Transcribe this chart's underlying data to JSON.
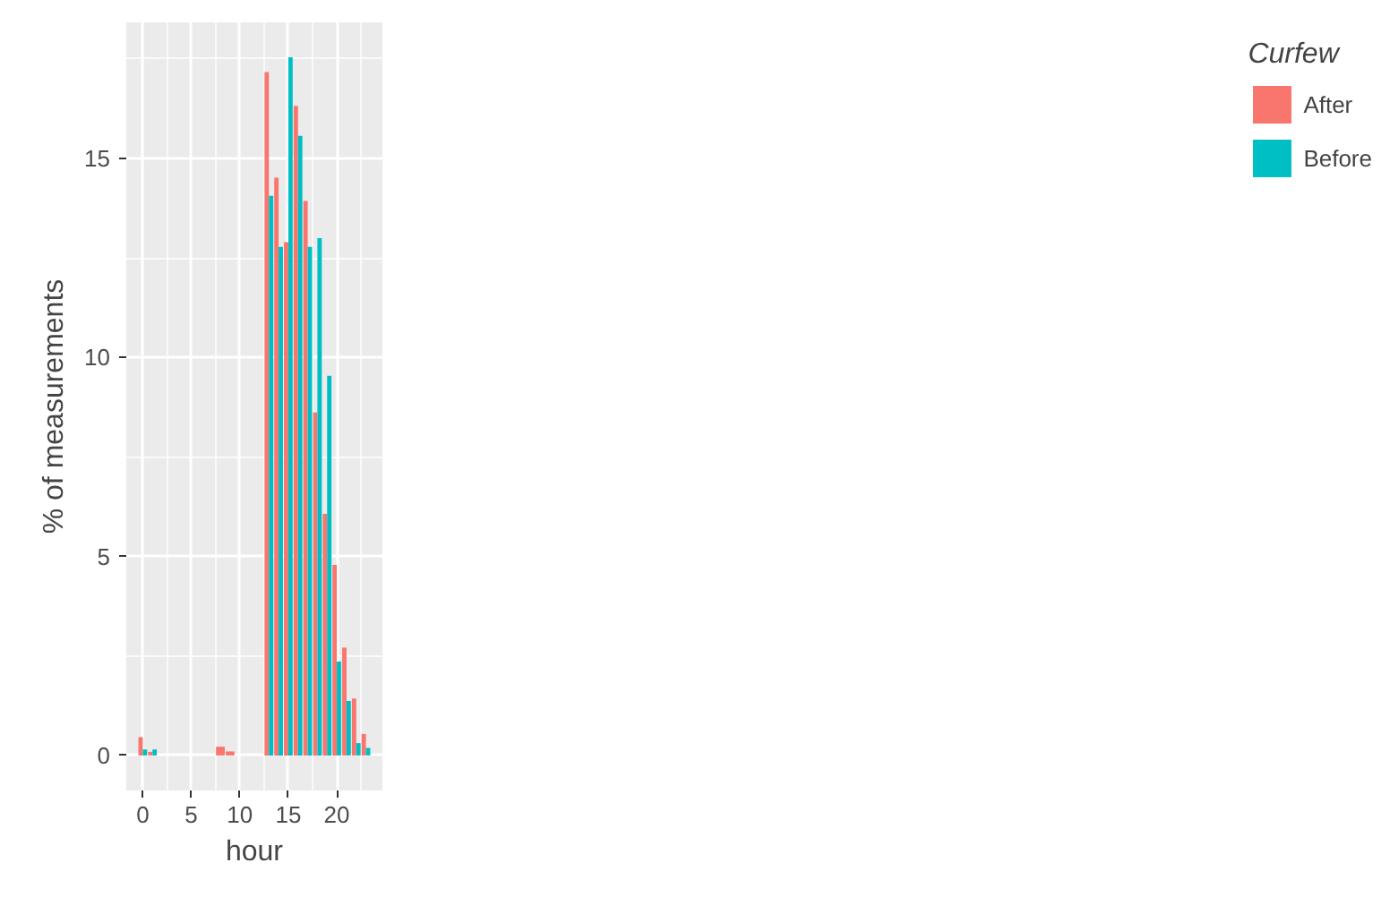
{
  "chart_data": {
    "type": "bar",
    "xlabel": "hour",
    "ylabel": "% of measurements",
    "legend_title": "Curfew",
    "x": [
      0,
      1,
      2,
      3,
      4,
      5,
      6,
      7,
      8,
      9,
      10,
      11,
      12,
      13,
      14,
      15,
      16,
      17,
      18,
      19,
      20,
      21,
      22,
      23
    ],
    "series": [
      {
        "name": "After",
        "color": "#f8766d",
        "values": [
          0.46,
          0.09,
          null,
          null,
          null,
          null,
          null,
          null,
          0.22,
          0.1,
          null,
          null,
          null,
          17.17,
          14.52,
          12.9,
          16.32,
          13.93,
          8.62,
          6.07,
          4.79,
          2.71,
          1.43,
          0.54
        ]
      },
      {
        "name": "Before",
        "color": "#00bfc4",
        "values": [
          0.15,
          0.15,
          null,
          null,
          null,
          null,
          null,
          null,
          null,
          null,
          null,
          null,
          null,
          14.06,
          12.78,
          17.54,
          15.57,
          12.78,
          13.0,
          9.54,
          2.36,
          1.37,
          0.31,
          0.19
        ]
      }
    ],
    "xlim": [
      -1.7,
      24.7
    ],
    "ylim": [
      -0.88,
      18.42
    ],
    "xticks": [
      0,
      5,
      10,
      15,
      20
    ],
    "yticks": [
      0,
      5,
      10,
      15
    ],
    "grid": true,
    "legend": "right"
  }
}
